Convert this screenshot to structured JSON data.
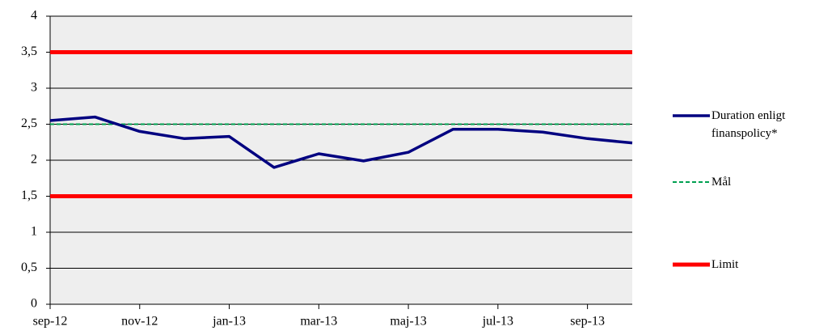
{
  "chart_data": {
    "type": "line",
    "categories": [
      "sep-12",
      null,
      "nov-12",
      null,
      "jan-13",
      null,
      "mar-13",
      null,
      "maj-13",
      null,
      "jul-13",
      null,
      "sep-13",
      null
    ],
    "series": [
      {
        "name": "Duration enligt finanspolicy*",
        "color": "#000080",
        "values": [
          2.55,
          2.6,
          2.4,
          2.3,
          2.33,
          1.9,
          2.09,
          1.99,
          2.11,
          2.43,
          2.43,
          2.39,
          2.3,
          2.24
        ]
      }
    ],
    "target": {
      "name": "Mål",
      "value": 2.5,
      "color": "#00a050"
    },
    "limit": {
      "name": "Limit",
      "values": [
        1.5,
        3.5
      ],
      "color": "#ff0000"
    },
    "ylim": [
      0,
      4
    ],
    "yticks": [
      0,
      {
        "value": 0.5,
        "label": "0,5"
      },
      1,
      {
        "value": 1.5,
        "label": "1,5"
      },
      2,
      {
        "value": 2.5,
        "label": "2,5"
      },
      3,
      {
        "value": 3.5,
        "label": "3,5"
      },
      4
    ],
    "grid": true,
    "legend": "right"
  }
}
